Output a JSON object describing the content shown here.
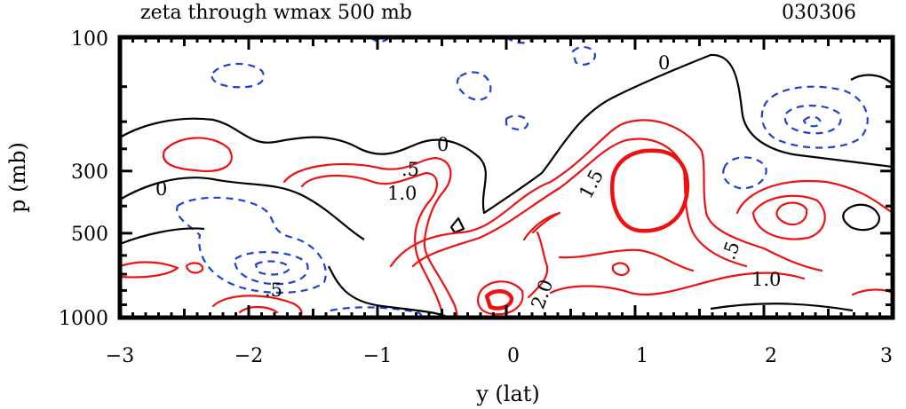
{
  "chart_data": {
    "type": "contour",
    "title": "zeta through wmax 500 mb",
    "date_label": "030306",
    "xlabel": "y (lat)",
    "ylabel": "p (mb)",
    "xlim": [
      -3,
      3
    ],
    "ylim": [
      1000,
      100
    ],
    "y_scale": "log",
    "x_ticks": [
      -3,
      -2,
      -1,
      0,
      1,
      2,
      3
    ],
    "x_tick_labels": [
      "−3",
      "−2",
      "−1",
      "0",
      "1",
      "2",
      "3"
    ],
    "y_ticks": [
      100,
      300,
      500,
      1000
    ],
    "y_tick_labels": [
      "100",
      "300",
      "500",
      "1000"
    ],
    "contour_levels": [
      -1.0,
      -0.5,
      0,
      0.5,
      1.0,
      1.5,
      2.0
    ],
    "contour_labels": [
      "0",
      "0",
      "0",
      ".5",
      "1.0",
      "1.5",
      ".5",
      "1.0",
      "2.0",
      ".5"
    ],
    "colors": {
      "positive": "#ee1111",
      "negative": "#1f3fd6",
      "zero": "#000000"
    },
    "grid": false
  }
}
